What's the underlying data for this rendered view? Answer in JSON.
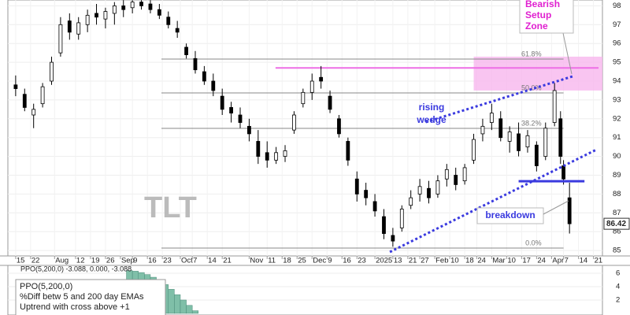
{
  "chart_data": {
    "type": "candlestick",
    "symbol": "TLT",
    "x": [
      0,
      3,
      6,
      9,
      12,
      15,
      18,
      21,
      24,
      27,
      30,
      33,
      36,
      39,
      42,
      45,
      48,
      51,
      54,
      57,
      60,
      63,
      66,
      69,
      72,
      75,
      78,
      81,
      84,
      87,
      90,
      93,
      96,
      99,
      102,
      105,
      108,
      111,
      114,
      117,
      120,
      123,
      126,
      129,
      132,
      135,
      138,
      141,
      144,
      147,
      150,
      153,
      156,
      159,
      162,
      165,
      168,
      171,
      174,
      177,
      180,
      182,
      183,
      185
    ],
    "open": [
      93.8,
      93.3,
      92.2,
      92.8,
      94.0,
      95.5,
      97.2,
      96.5,
      97.0,
      97.6,
      97.3,
      97.6,
      98.0,
      97.9,
      98.2,
      98.1,
      97.8,
      97.4,
      96.8,
      95.8,
      95.2,
      94.5,
      94.0,
      93.2,
      92.6,
      92.2,
      91.6,
      90.8,
      90.2,
      89.8,
      90.0,
      91.4,
      92.8,
      93.4,
      94.2,
      93.2,
      92.0,
      90.8,
      88.8,
      88.2,
      87.6,
      86.8,
      85.8,
      86.2,
      87.4,
      88.0,
      88.3,
      88.0,
      88.8,
      89.0,
      88.7,
      89.8,
      91.2,
      91.8,
      92.0,
      90.8,
      91.2,
      90.5,
      90.6,
      90.0,
      91.8,
      92.0,
      89.5,
      87.8
    ],
    "high": [
      94.3,
      93.6,
      92.8,
      93.9,
      95.3,
      97.4,
      97.6,
      97.4,
      97.8,
      98.1,
      97.9,
      98.2,
      98.3,
      98.3,
      98.3,
      98.3,
      98.1,
      97.7,
      97.2,
      96.0,
      95.6,
      94.8,
      94.4,
      93.6,
      92.9,
      92.6,
      92.0,
      91.4,
      90.8,
      90.5,
      90.6,
      92.4,
      93.6,
      94.4,
      94.8,
      93.5,
      92.2,
      91.0,
      89.2,
      88.6,
      88.0,
      87.2,
      86.2,
      87.4,
      88.2,
      88.8,
      88.7,
      89.0,
      89.6,
      89.4,
      89.6,
      91.2,
      92.0,
      92.8,
      92.4,
      91.6,
      91.8,
      91.4,
      90.8,
      91.8,
      93.9,
      92.4,
      89.8,
      88.6
    ],
    "low": [
      93.2,
      92.4,
      91.5,
      92.6,
      93.8,
      95.3,
      96.2,
      96.2,
      96.6,
      97.0,
      96.8,
      97.0,
      97.4,
      97.6,
      97.8,
      97.6,
      97.3,
      96.8,
      96.3,
      95.2,
      94.4,
      93.8,
      93.2,
      92.2,
      91.8,
      91.5,
      90.8,
      89.6,
      89.4,
      89.6,
      89.7,
      91.2,
      92.6,
      93.0,
      93.6,
      92.3,
      91.0,
      89.5,
      87.6,
      87.4,
      86.8,
      85.6,
      85.2,
      86.0,
      87.2,
      87.6,
      87.5,
      87.8,
      88.4,
      88.2,
      88.5,
      89.6,
      90.8,
      91.4,
      90.8,
      90.2,
      90.0,
      90.2,
      89.2,
      89.8,
      91.6,
      89.6,
      88.5,
      85.9
    ],
    "close": [
      93.6,
      92.6,
      92.5,
      93.7,
      95.0,
      97.0,
      96.6,
      97.1,
      97.5,
      97.4,
      97.7,
      98.0,
      97.8,
      98.2,
      98.0,
      97.8,
      97.5,
      97.0,
      96.6,
      95.4,
      94.6,
      94.0,
      93.5,
      92.5,
      92.3,
      91.8,
      91.2,
      90.0,
      89.8,
      90.2,
      90.3,
      92.2,
      93.4,
      94.0,
      94.0,
      92.5,
      91.2,
      89.8,
      88.0,
      87.8,
      87.1,
      85.9,
      85.5,
      87.2,
      87.8,
      88.4,
      87.8,
      88.7,
      89.3,
      88.5,
      89.4,
      90.9,
      91.6,
      92.3,
      91.0,
      91.3,
      90.3,
      91.1,
      89.5,
      91.5,
      93.5,
      90.0,
      88.8,
      86.42
    ],
    "xlim": [
      -2.6,
      196
    ],
    "ylim": [
      84.71,
      98.31
    ],
    "yticks": [
      85,
      86,
      87,
      88,
      89,
      90,
      91,
      92,
      93,
      94,
      95,
      96,
      97,
      98
    ],
    "xticks": [
      {
        "value": 0,
        "label": "15"
      },
      {
        "value": 5,
        "label": "22"
      },
      {
        "value": 13,
        "label": "Aug"
      },
      {
        "value": 20,
        "label": "12"
      },
      {
        "value": 25,
        "label": "19"
      },
      {
        "value": 30,
        "label": "26"
      },
      {
        "value": 35,
        "label": "Sep"
      },
      {
        "value": 39,
        "label": "9"
      },
      {
        "value": 44,
        "label": "16"
      },
      {
        "value": 49,
        "label": "23"
      },
      {
        "value": 55,
        "label": "Oct"
      },
      {
        "value": 59,
        "label": "7"
      },
      {
        "value": 64,
        "label": "14"
      },
      {
        "value": 69,
        "label": "21"
      },
      {
        "value": 78,
        "label": "Nov"
      },
      {
        "value": 84,
        "label": "11"
      },
      {
        "value": 89,
        "label": "18"
      },
      {
        "value": 94,
        "label": "25"
      },
      {
        "value": 99,
        "label": "Dec"
      },
      {
        "value": 104,
        "label": "9"
      },
      {
        "value": 109,
        "label": "16"
      },
      {
        "value": 114,
        "label": "23"
      },
      {
        "value": 120,
        "label": "2025"
      },
      {
        "value": 126,
        "label": "13"
      },
      {
        "value": 131,
        "label": "21"
      },
      {
        "value": 135,
        "label": "27"
      },
      {
        "value": 140,
        "label": "Feb"
      },
      {
        "value": 145,
        "label": "10"
      },
      {
        "value": 150,
        "label": "18"
      },
      {
        "value": 154,
        "label": "24"
      },
      {
        "value": 159,
        "label": "Mar"
      },
      {
        "value": 164,
        "label": "10"
      },
      {
        "value": 169,
        "label": "17"
      },
      {
        "value": 174,
        "label": "24"
      },
      {
        "value": 179,
        "label": "Apr"
      },
      {
        "value": 183,
        "label": "7"
      },
      {
        "value": 188,
        "label": "14"
      },
      {
        "value": 193,
        "label": "21"
      }
    ],
    "fib_levels": {
      "x": [
        48.7,
        183
      ],
      "levels": [
        {
          "value": 95.17,
          "label": "61.8%"
        },
        {
          "value": 93.37,
          "label": "50.0%"
        },
        {
          "value": 91.49,
          "label": "38.2%"
        },
        {
          "value": 85.13,
          "label": "0.0%"
        }
      ]
    },
    "resistance": {
      "value": 94.7,
      "x": [
        86.8,
        194.7
      ],
      "color": "#ee6ee6"
    },
    "bearish_zone": {
      "label": [
        "Bearish",
        "Setup",
        "Zone"
      ],
      "ylim": [
        93.5,
        95.3
      ],
      "x": [
        153,
        196
      ],
      "color": "#f7b6ee"
    },
    "wedge": {
      "label": [
        "rising",
        "wedge"
      ],
      "color": "#3a3adf",
      "lines": [
        {
          "x": [
            137,
            186
          ],
          "y": [
            91.82,
            94.25
          ]
        },
        {
          "x": [
            125,
            194
          ],
          "y": [
            84.92,
            90.36
          ]
        }
      ]
    },
    "breakdown": {
      "label": "breakdown",
      "value": 88.68,
      "x": [
        168,
        190
      ],
      "color": "#3a3adf"
    },
    "ppo": {
      "header": "PPO(5,200,0) -3.088, 0.000, -3.088",
      "note": [
        "PPO(5,200,0)",
        "%Diff betw 5 and 200 day EMAs",
        "Uptrend with cross above +1"
      ],
      "x": [
        38,
        40,
        42,
        44,
        46,
        48,
        50,
        52,
        54,
        56,
        58,
        60
      ],
      "values": [
        6.4,
        6.3,
        6.1,
        5.8,
        5.4,
        4.9,
        4.3,
        3.6,
        2.8,
        2.0,
        1.2,
        0.4
      ],
      "color": "#7fbfa8",
      "ylim": [
        -0.24,
        7.17
      ],
      "yticks": [
        2,
        4,
        6
      ]
    }
  }
}
